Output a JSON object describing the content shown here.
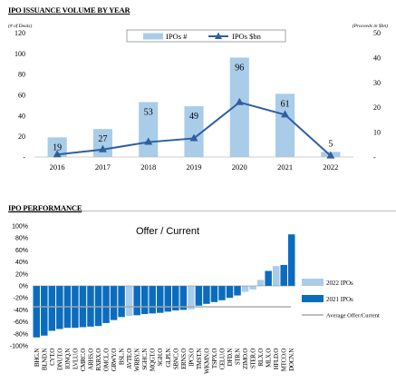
{
  "page": {
    "section1_title": "IPO ISSUANCE VOLUME BY YEAR",
    "section2_title": "IPO PERFORMANCE"
  },
  "colors": {
    "bar_light": "#a9cce9",
    "line_dark": "#2e5f9e",
    "bar_2021": "#0b6cbd",
    "bar_2022": "#a9cce9",
    "avg_line": "#a6a6a6"
  },
  "chart_data": [
    {
      "type": "bar",
      "title": "",
      "left_axis_label": "(# of Deals)",
      "right_axis_label": "(Proceeds in $bn)",
      "categories": [
        "2016",
        "2017",
        "2018",
        "2019",
        "2020",
        "2021",
        "2022"
      ],
      "series": [
        {
          "name": "IPOs #",
          "type": "bar",
          "axis": "left",
          "values": [
            19,
            27,
            53,
            49,
            96,
            61,
            5
          ],
          "data_labels": [
            "19",
            "27",
            "53",
            "49",
            "96",
            "61",
            "5"
          ]
        },
        {
          "name": "IPOs $bn",
          "type": "line",
          "axis": "right",
          "values": [
            1,
            3,
            6,
            7.5,
            22,
            17,
            0.5
          ]
        }
      ],
      "left_ylim": [
        0,
        120
      ],
      "left_ticks": [
        "-",
        "20",
        "40",
        "60",
        "80",
        "100",
        "120"
      ],
      "right_ylim": [
        0,
        50
      ],
      "right_ticks": [
        "-",
        "10",
        "20",
        "30",
        "40",
        "50"
      ],
      "legend_position": "top"
    },
    {
      "type": "bar",
      "title": "Offer / Current",
      "ylim": [
        -100,
        100
      ],
      "y_ticks": [
        "-100%",
        "-80%",
        "-60%",
        "-40%",
        "-20%",
        "0%",
        "20%",
        "40%",
        "60%",
        "80%",
        "100%"
      ],
      "categories": [
        "BHG.N",
        "BLND.N",
        "CYT.O",
        "DNUT.O",
        "IONQ.N",
        "LVLU.O",
        "CMRC.O",
        "ARHS.O",
        "RXRX.O",
        "OMCL.O",
        "GRWY.O",
        "BSL.N",
        "AVTE.O",
        "WRBY.N",
        "SGHC.N",
        "MQGT.O",
        "SGH.O",
        "GLPI.N",
        "SBNC.O",
        "ERNS.O",
        "IPCS.O",
        "TMST.N",
        "WKMN.O",
        "TSPX.O",
        "CELU.O",
        "DFD.N",
        "STR.N",
        "ZIMO.O",
        "STER.O",
        "RLX.O",
        "MLX.O",
        "HFLD.O",
        "MTCO.O",
        "DOCN.N"
      ],
      "values": [
        -86,
        -83,
        -75,
        -72,
        -70,
        -70,
        -69,
        -68,
        -67,
        -62,
        -57,
        -52,
        -50,
        -49,
        -47,
        -46,
        -45,
        -43,
        -41,
        -40,
        -39,
        -33,
        -30,
        -27,
        -24,
        -20,
        -16,
        -10,
        -6,
        10,
        25,
        33,
        35,
        86
      ],
      "year": [
        "2021",
        "2021",
        "2021",
        "2021",
        "2021",
        "2021",
        "2021",
        "2021",
        "2021",
        "2021",
        "2021",
        "2021",
        "2022",
        "2021",
        "2021",
        "2021",
        "2021",
        "2021",
        "2021",
        "2021",
        "2022",
        "2021",
        "2021",
        "2021",
        "2021",
        "2021",
        "2021",
        "2022",
        "2022",
        "2022",
        "2021",
        "2022",
        "2021",
        "2021"
      ],
      "series": [
        {
          "name": "2022 IPOs"
        },
        {
          "name": "2021 IPOs"
        },
        {
          "name": "Average Offer/Current",
          "value": -35
        }
      ],
      "legend_position": "right"
    }
  ]
}
